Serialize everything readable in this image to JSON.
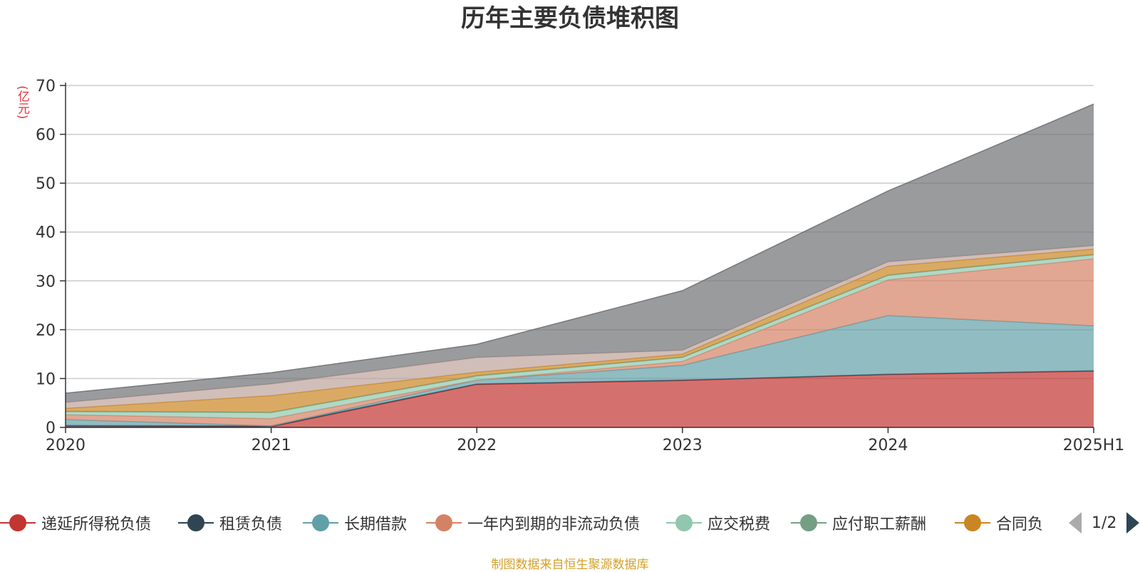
{
  "chart_data": {
    "type": "area",
    "title": "历年主要负债堆积图",
    "ylabel": "(亿元)",
    "xlabel": "",
    "stacked": true,
    "x": [
      "2020",
      "2021",
      "2022",
      "2023",
      "2024",
      "2025H1"
    ],
    "ylim": [
      0,
      70
    ],
    "yticks": [
      0,
      10,
      20,
      30,
      40,
      50,
      60,
      70
    ],
    "grid": true,
    "legend_position": "bottom",
    "series": [
      {
        "name": "递延所得税负债",
        "color": "#c23531",
        "values": [
          0.1,
          0.1,
          8.8,
          9.6,
          10.8,
          11.5
        ]
      },
      {
        "name": "租赁负债",
        "color": "#2f4554",
        "values": [
          0.3,
          0.2,
          0.1,
          0.1,
          0.1,
          0.1
        ]
      },
      {
        "name": "长期借款",
        "color": "#61a0a8",
        "values": [
          1.2,
          0.0,
          0.8,
          3.0,
          12.0,
          9.2
        ]
      },
      {
        "name": "一年内到期的非流动负债",
        "color": "#d48265",
        "values": [
          1.0,
          1.5,
          0.0,
          0.8,
          7.3,
          13.7
        ]
      },
      {
        "name": "应交税费",
        "color": "#91c7ae",
        "values": [
          0.6,
          1.2,
          0.8,
          0.8,
          0.9,
          0.8
        ]
      },
      {
        "name": "应付职工薪酬",
        "color": "#749f83",
        "values": [
          0.1,
          0.1,
          0.1,
          0.1,
          0.1,
          0.1
        ]
      },
      {
        "name": "合同负债",
        "color": "#ca8622",
        "values": [
          0.6,
          3.4,
          0.7,
          0.6,
          1.8,
          1.1
        ]
      },
      {
        "name": "",
        "color": "#bda29a",
        "values": [
          1.2,
          2.4,
          3.0,
          0.8,
          0.9,
          0.7
        ]
      },
      {
        "name": "",
        "color": "#6e7074",
        "values": [
          1.9,
          2.3,
          2.7,
          12.2,
          14.5,
          29.0
        ]
      }
    ]
  },
  "legend": {
    "visible_items": [
      "递延所得税负债",
      "租赁负债",
      "长期借款",
      "一年内到期的非流动负债",
      "应交税费",
      "应付职工薪酬",
      "合同负"
    ],
    "page": "1/2"
  },
  "footer": "制图数据来自恒生聚源数据库"
}
